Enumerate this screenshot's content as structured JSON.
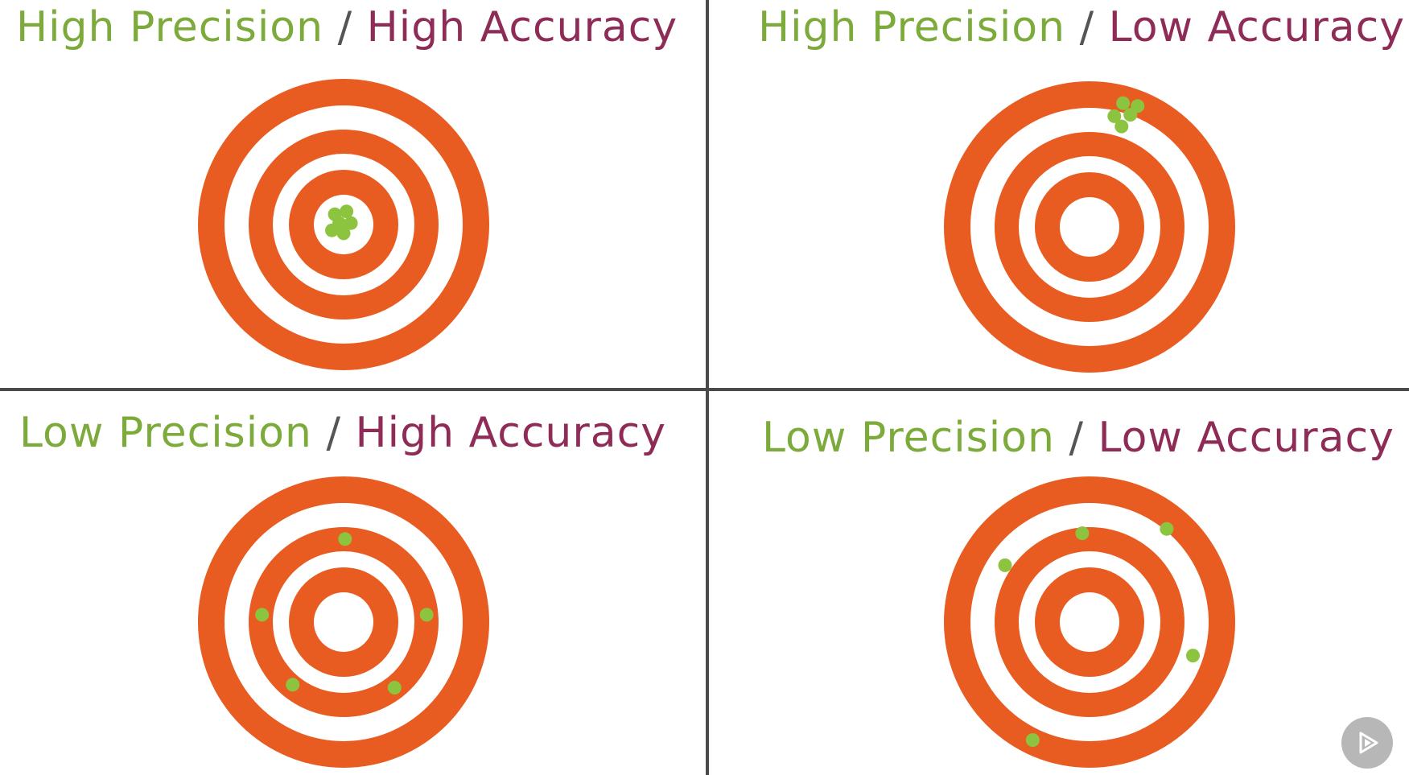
{
  "colors": {
    "ring": "#e95c21",
    "ring_gap": "#ffffff",
    "shot": "#8cc43f",
    "precision_text": "#7cab3c",
    "accuracy_text": "#8e2b57",
    "slash_text": "#555555",
    "divider": "#4a4a4a"
  },
  "quadrants": [
    {
      "precision_label": "High Precision",
      "slash": "/",
      "accuracy_label": "High Accuracy",
      "shots": [
        [
          -0.06,
          -0.07
        ],
        [
          0.02,
          -0.09
        ],
        [
          0.05,
          -0.01
        ],
        [
          -0.08,
          0.04
        ],
        [
          0.0,
          0.06
        ],
        [
          -0.03,
          -0.01
        ]
      ]
    },
    {
      "precision_label": "High Precision",
      "slash": "/",
      "accuracy_label": "Low Accuracy",
      "shots": [
        [
          0.23,
          -0.85
        ],
        [
          0.33,
          -0.83
        ],
        [
          0.17,
          -0.76
        ],
        [
          0.28,
          -0.77
        ],
        [
          0.22,
          -0.69
        ]
      ]
    },
    {
      "precision_label": "Low Precision",
      "slash": "/",
      "accuracy_label": "High Accuracy",
      "shots": [
        [
          0.01,
          -0.57
        ],
        [
          -0.56,
          -0.05
        ],
        [
          0.57,
          -0.05
        ],
        [
          -0.35,
          0.43
        ],
        [
          0.35,
          0.45
        ]
      ]
    },
    {
      "precision_label": "Low Precision",
      "slash": "/",
      "accuracy_label": "Low Accuracy",
      "shots": [
        [
          -0.05,
          -0.61
        ],
        [
          0.53,
          -0.64
        ],
        [
          -0.58,
          -0.39
        ],
        [
          0.71,
          0.23
        ],
        [
          -0.39,
          0.81
        ]
      ]
    }
  ],
  "play_icon": "play-icon"
}
